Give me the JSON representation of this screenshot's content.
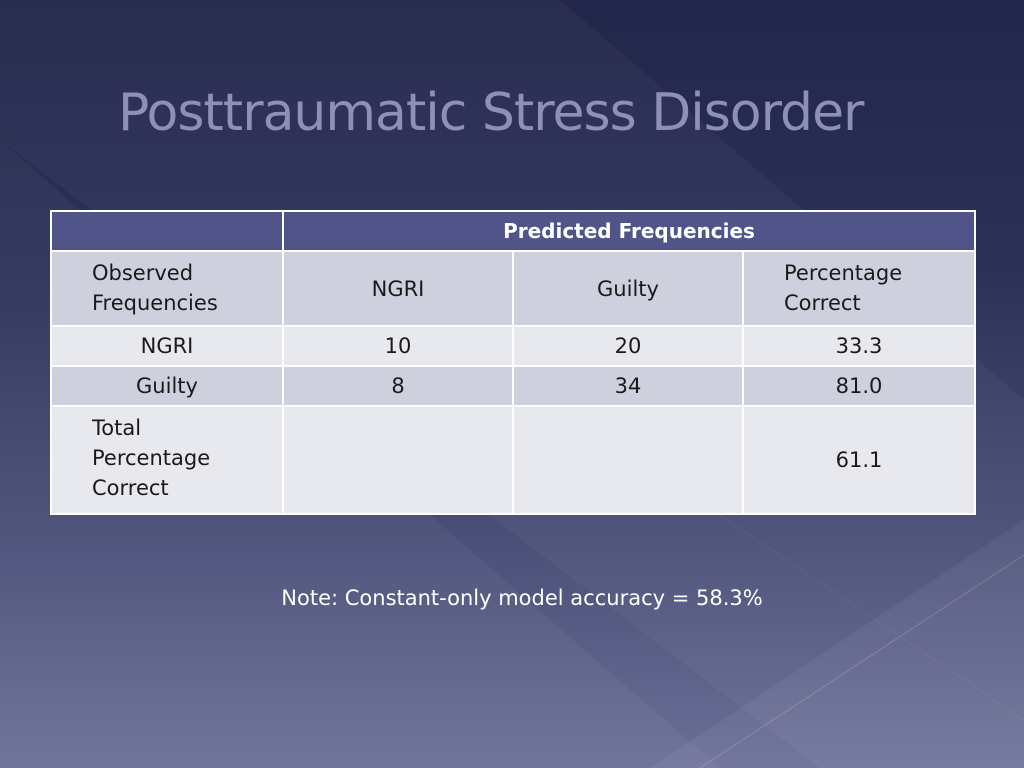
{
  "slide": {
    "title": "Posttraumatic Stress Disorder",
    "note": "Note: Constant-only model accuracy = 58.3%"
  },
  "table": {
    "header": {
      "empty": "",
      "predicted": "Predicted Frequencies"
    },
    "subheader": {
      "observed": "Observed\nFrequencies",
      "ngri": "NGRI",
      "guilty": "Guilty",
      "percentage": "Percentage\nCorrect"
    },
    "rows": [
      {
        "label": "NGRI",
        "ngri": "10",
        "guilty": "20",
        "percent": "33.3"
      },
      {
        "label": "Guilty",
        "ngri": "8",
        "guilty": "34",
        "percent": "81.0"
      }
    ],
    "total": {
      "label": "Total\nPercentage\nCorrect",
      "ngri": "",
      "guilty": "",
      "percent": "61.1"
    }
  },
  "colors": {
    "header_bg": "#515488",
    "row_dark": "#cfd0de",
    "row_light": "#e8e8ef",
    "title": "#8f90b8"
  }
}
